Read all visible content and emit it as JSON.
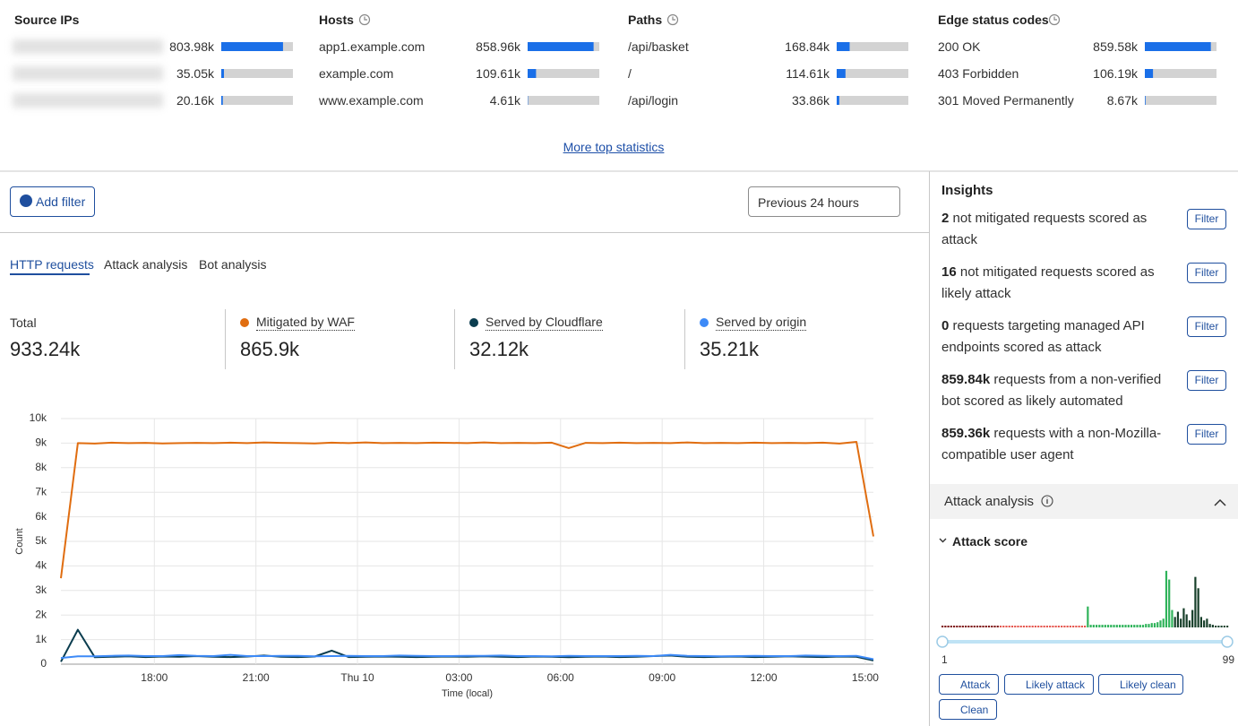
{
  "top_stats": [
    {
      "title": "Source IPs",
      "rows": [
        {
          "value": 803980,
          "value_label": "803.98k"
        },
        {
          "value": 35050,
          "value_label": "35.05k"
        },
        {
          "value": 20160,
          "value_label": "20.16k"
        }
      ]
    },
    {
      "title": "Hosts",
      "rows": [
        {
          "label": "app1.example.com",
          "value": 858960,
          "value_label": "858.96k"
        },
        {
          "label": "example.com",
          "value": 109610,
          "value_label": "109.61k"
        },
        {
          "label": "www.example.com",
          "value": 4610,
          "value_label": "4.61k"
        }
      ]
    },
    {
      "title": "Paths",
      "rows": [
        {
          "label": "/api/basket",
          "value": 168840,
          "value_label": "168.84k"
        },
        {
          "label": "/",
          "value": 114610,
          "value_label": "114.61k"
        },
        {
          "label": "/api/login",
          "value": 33860,
          "value_label": "33.86k"
        }
      ]
    },
    {
      "title": "Edge status codes",
      "rows": [
        {
          "label": "200 OK",
          "value": 859580,
          "value_label": "859.58k"
        },
        {
          "label": "403 Forbidden",
          "value": 106190,
          "value_label": "106.19k"
        },
        {
          "label": "301 Moved Permanently",
          "value": 8670,
          "value_label": "8.67k"
        }
      ]
    }
  ],
  "more_link": "More top statistics",
  "add_filter": "Add filter",
  "time_range": "Previous 24 hours",
  "tabs": [
    "HTTP requests",
    "Attack analysis",
    "Bot analysis"
  ],
  "summary": {
    "total_label": "Total",
    "total_value": 933240,
    "total_value_label": "933.24k",
    "series_totals": [
      "865.9k",
      "32.12k",
      "35.21k"
    ]
  },
  "chart_data": [
    {
      "type": "line",
      "x_label": "Time (local)",
      "y_label": "Count",
      "x": [
        15.24,
        15.74,
        16.24,
        16.74,
        17.24,
        17.74,
        18.24,
        18.74,
        19.24,
        19.74,
        20.24,
        20.74,
        21.24,
        21.74,
        22.24,
        22.74,
        23.24,
        23.74,
        24.24,
        24.74,
        25.24,
        25.74,
        26.24,
        26.74,
        27.24,
        27.74,
        28.24,
        28.74,
        29.24,
        29.74,
        30.24,
        30.74,
        31.24,
        31.74,
        32.24,
        32.74,
        33.24,
        33.74,
        34.24,
        34.74,
        35.24,
        35.74,
        36.24,
        36.74,
        37.24,
        37.74,
        38.24,
        38.74,
        39.24
      ],
      "xlim": [
        15.24,
        39.24
      ],
      "xticks": [
        {
          "value": 18,
          "label": "18:00"
        },
        {
          "value": 21,
          "label": "21:00"
        },
        {
          "value": 24,
          "label": "Thu 10"
        },
        {
          "value": 27,
          "label": "03:00"
        },
        {
          "value": 30,
          "label": "06:00"
        },
        {
          "value": 33,
          "label": "09:00"
        },
        {
          "value": 36,
          "label": "12:00"
        },
        {
          "value": 39,
          "label": "15:00"
        }
      ],
      "ylim": [
        0,
        10000
      ],
      "yticks": [
        0,
        {
          "value": 1000,
          "label": "1k"
        },
        {
          "value": 2000,
          "label": "2k"
        },
        {
          "value": 3000,
          "label": "3k"
        },
        {
          "value": 4000,
          "label": "4k"
        },
        {
          "value": 5000,
          "label": "5k"
        },
        {
          "value": 6000,
          "label": "6k"
        },
        {
          "value": 7000,
          "label": "7k"
        },
        {
          "value": 8000,
          "label": "8k"
        },
        {
          "value": 9000,
          "label": "9k"
        },
        {
          "value": 10000,
          "label": "10k"
        }
      ],
      "grid": true,
      "series": [
        {
          "name": "Mitigated by WAF",
          "color": "#e06d10",
          "values": [
            3500,
            9000,
            8980,
            9020,
            9000,
            9010,
            8990,
            9000,
            9010,
            9000,
            9020,
            9000,
            9030,
            9010,
            9000,
            8990,
            9020,
            9000,
            9030,
            9000,
            9010,
            9000,
            9020,
            9010,
            9000,
            9030,
            9000,
            9010,
            9000,
            9020,
            8800,
            9010,
            9000,
            9020,
            9000,
            9010,
            9000,
            9030,
            9000,
            9010,
            9000,
            9020,
            9000,
            9010,
            9000,
            9020,
            8980,
            9050,
            5200
          ]
        },
        {
          "name": "Served by Cloudflare",
          "color": "#0b3d4f",
          "values": [
            100,
            1400,
            280,
            300,
            320,
            290,
            310,
            300,
            330,
            300,
            290,
            310,
            350,
            300,
            290,
            310,
            550,
            290,
            300,
            310,
            300,
            290,
            300,
            310,
            300,
            320,
            300,
            290,
            310,
            300,
            280,
            300,
            310,
            290,
            300,
            330,
            350,
            300,
            290,
            300,
            310,
            290,
            300,
            320,
            300,
            290,
            310,
            300,
            150
          ]
        },
        {
          "name": "Served by origin",
          "color": "#3d8af7",
          "values": [
            250,
            320,
            320,
            340,
            350,
            330,
            330,
            370,
            340,
            330,
            380,
            330,
            330,
            340,
            340,
            320,
            330,
            340,
            330,
            330,
            350,
            340,
            330,
            330,
            340,
            340,
            350,
            330,
            330,
            320,
            340,
            330,
            330,
            330,
            340,
            330,
            380,
            340,
            330,
            320,
            330,
            340,
            330,
            330,
            350,
            340,
            330,
            340,
            200
          ]
        }
      ]
    },
    {
      "type": "bar",
      "title": "Attack score",
      "xlim": [
        1,
        99
      ],
      "xticks": [
        1,
        99
      ],
      "ylim": [
        0,
        70
      ],
      "series": [
        {
          "name": "Attack",
          "color": "#7a0c0c",
          "x": [
            1,
            2,
            3,
            4,
            5,
            6,
            7,
            8,
            9,
            10,
            11,
            12,
            13,
            14,
            15,
            16,
            17,
            18,
            19,
            20
          ],
          "values": [
            2,
            2,
            2,
            2,
            2,
            2,
            2,
            2,
            2,
            2,
            2,
            2,
            2,
            2,
            2,
            2,
            2,
            2,
            2,
            2
          ]
        },
        {
          "name": "Likely attack",
          "color": "#e5534b",
          "x": [
            21,
            22,
            23,
            24,
            25,
            26,
            27,
            28,
            29,
            30,
            31,
            32,
            33,
            34,
            35,
            36,
            37,
            38,
            39,
            40,
            41,
            42,
            43,
            44,
            45,
            46,
            47,
            48,
            49,
            50
          ],
          "values": [
            2,
            2,
            2,
            2,
            2,
            2,
            2,
            2,
            2,
            2,
            2,
            2,
            2,
            2,
            2,
            2,
            2,
            2,
            2,
            2,
            2,
            2,
            2,
            2,
            2,
            2,
            2,
            2,
            2,
            2
          ]
        },
        {
          "name": "Likely clean",
          "color": "#2fb35a",
          "x": [
            51,
            52,
            53,
            54,
            55,
            56,
            57,
            58,
            59,
            60,
            61,
            62,
            63,
            64,
            65,
            66,
            67,
            68,
            69,
            70,
            71,
            72,
            73,
            74,
            75,
            76,
            77,
            78,
            79,
            80
          ],
          "values": [
            24,
            3,
            3,
            3,
            3,
            3,
            3,
            3,
            3,
            3,
            3,
            3,
            3,
            3,
            3,
            3,
            3,
            3,
            3,
            3,
            4,
            4,
            5,
            5,
            6,
            8,
            10,
            65,
            55,
            20
          ]
        },
        {
          "name": "Clean",
          "color": "#173f2a",
          "x": [
            81,
            82,
            83,
            84,
            85,
            86,
            87,
            88,
            89,
            90,
            91,
            92,
            93,
            94,
            95,
            96,
            97,
            98,
            99
          ],
          "values": [
            12,
            18,
            10,
            22,
            15,
            8,
            20,
            58,
            45,
            12,
            8,
            10,
            4,
            3,
            2,
            2,
            2,
            2,
            2
          ]
        }
      ]
    }
  ],
  "insights": {
    "title": "Insights",
    "filter_button": "Filter",
    "items": [
      {
        "count": "2",
        "text": "not mitigated requests scored as attack"
      },
      {
        "count": "16",
        "text": "not mitigated requests scored as likely attack"
      },
      {
        "count": "0",
        "text": "requests targeting managed API endpoints scored as attack"
      },
      {
        "count": "859.84k",
        "text": "requests from a non-verified bot scored as likely automated"
      },
      {
        "count": "859.36k",
        "text": "requests with a non-Mozilla-compatible user agent"
      }
    ]
  },
  "attack_panel": {
    "title": "Attack analysis"
  }
}
